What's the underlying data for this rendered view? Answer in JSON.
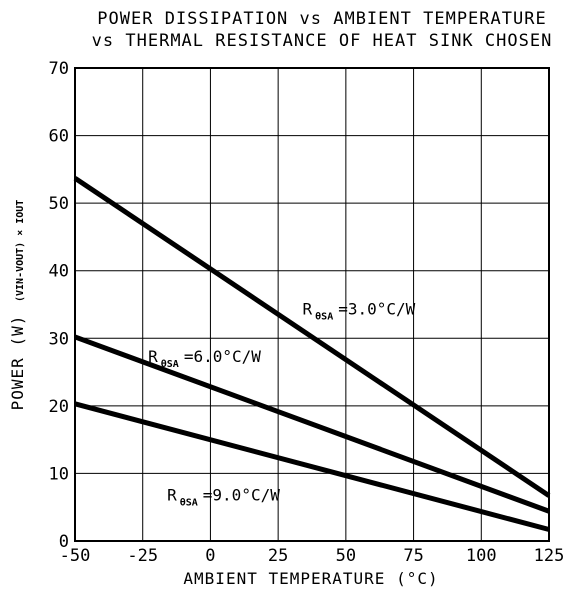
{
  "chart_data": {
    "type": "line",
    "title_line1": "POWER DISSIPATION vs AMBIENT TEMPERATURE",
    "title_line2": "vs THERMAL RESISTANCE OF HEAT SINK CHOSEN",
    "xlabel": "AMBIENT TEMPERATURE (°C)",
    "ylabel_main": "POWER (W)",
    "ylabel_sub": "(VIN-VOUT) × IOUT",
    "xlim": [
      -50,
      125
    ],
    "ylim": [
      0,
      70
    ],
    "xticks": [
      -50,
      -25,
      0,
      25,
      50,
      75,
      100,
      125
    ],
    "yticks": [
      0,
      10,
      20,
      30,
      40,
      50,
      60,
      70
    ],
    "grid": true,
    "series": [
      {
        "name": "R θSA =3.0°C/W",
        "label_main": "R",
        "label_sub": "θSA",
        "label_value": "=3.0°C/W",
        "x": [
          -50,
          125
        ],
        "y": [
          53.7,
          6.7
        ]
      },
      {
        "name": "R θSA =6.0°C/W",
        "label_main": "R",
        "label_sub": "θSA",
        "label_value": "=6.0°C/W",
        "x": [
          -50,
          125
        ],
        "y": [
          30.2,
          4.4
        ]
      },
      {
        "name": "R θSA =9.0°C/W",
        "label_main": "R",
        "label_sub": "θSA",
        "label_value": "=9.0°C/W",
        "x": [
          -50,
          125
        ],
        "y": [
          20.3,
          1.7
        ]
      }
    ]
  }
}
